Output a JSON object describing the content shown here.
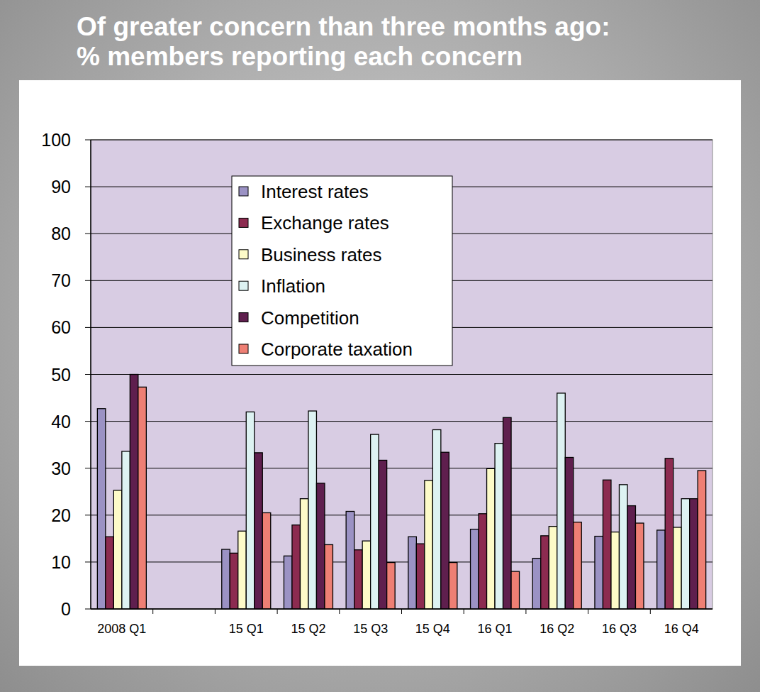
{
  "chart_data": {
    "type": "bar",
    "title": "Of greater concern than three months ago:",
    "subtitle": "% members reporting each concern",
    "categories": [
      "2008 Q1",
      null,
      "15 Q1",
      "15 Q2",
      "15 Q3",
      "15 Q4",
      "16 Q1",
      "16 Q2",
      "16 Q3",
      "16 Q4"
    ],
    "series": [
      {
        "name": "Interest rates",
        "color": "#9b92c4",
        "values": [
          42.7,
          null,
          12.7,
          11.3,
          20.8,
          15.4,
          17.0,
          10.8,
          15.5,
          16.8
        ]
      },
      {
        "name": "Exchange rates",
        "color": "#8c2b50",
        "values": [
          15.4,
          null,
          11.9,
          17.9,
          12.6,
          13.9,
          20.3,
          15.6,
          27.5,
          32.1
        ]
      },
      {
        "name": "Business rates",
        "color": "#fdfbc8",
        "values": [
          25.3,
          null,
          16.6,
          23.5,
          14.5,
          27.4,
          29.9,
          17.6,
          16.4,
          17.4
        ]
      },
      {
        "name": "Inflation",
        "color": "#ddf2f2",
        "values": [
          33.6,
          null,
          42.0,
          42.2,
          37.2,
          38.2,
          35.3,
          46.0,
          26.5,
          23.5
        ]
      },
      {
        "name": "Competition",
        "color": "#5f1f4e",
        "values": [
          50.0,
          null,
          33.3,
          26.8,
          31.7,
          33.4,
          40.8,
          32.3,
          22.0,
          23.5
        ]
      },
      {
        "name": "Corporate taxation",
        "color": "#ee7f74",
        "values": [
          47.3,
          null,
          20.5,
          13.7,
          9.9,
          9.9,
          8.0,
          18.5,
          18.3,
          29.5
        ]
      }
    ],
    "ylim": [
      0,
      100
    ],
    "yticks": [
      0,
      10,
      20,
      30,
      40,
      50,
      60,
      70,
      80,
      90,
      100
    ],
    "grid": true,
    "legend": "top-left"
  }
}
